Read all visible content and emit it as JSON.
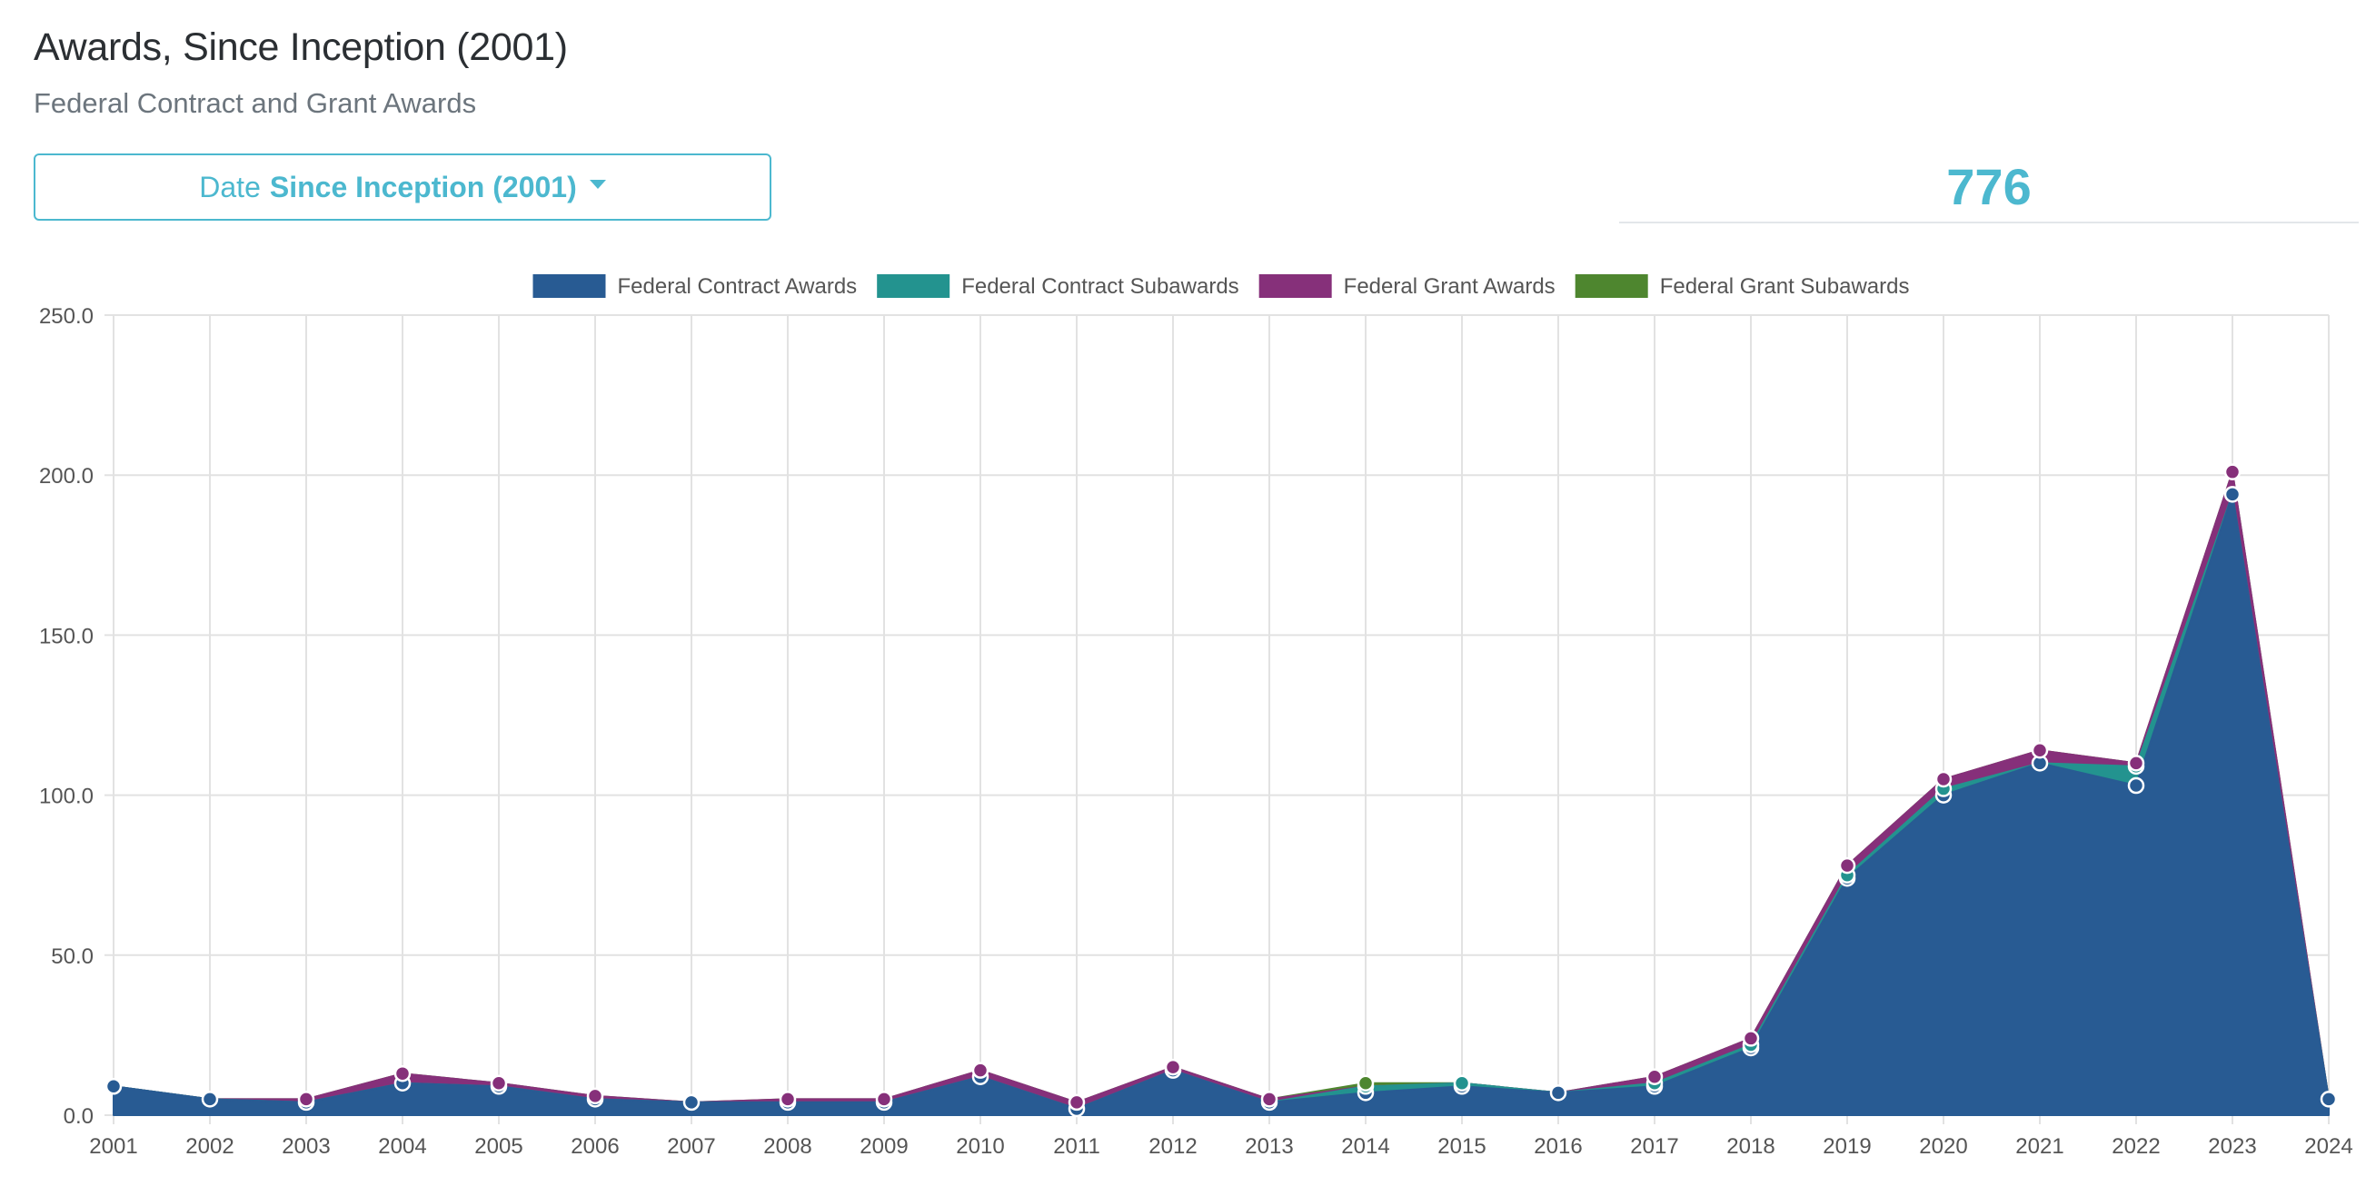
{
  "header": {
    "title": "Awards, Since Inception (2001)",
    "subtitle": "Federal Contract and Grant Awards"
  },
  "date_filter": {
    "label": "Date",
    "value": "Since Inception (2001)"
  },
  "total": "776",
  "colors": {
    "contract_awards": "#285b93",
    "contract_subawards": "#23938f",
    "grant_awards": "#86307a",
    "grant_subawards": "#4e862f",
    "grid": "#e2e2e2",
    "tick_text": "#555555"
  },
  "chart_data": {
    "type": "area",
    "stacked": true,
    "title": "",
    "xlabel": "",
    "ylabel": "",
    "ylim": [
      0,
      250
    ],
    "yticks": [
      "0.0",
      "50.0",
      "100.0",
      "150.0",
      "200.0",
      "250.0"
    ],
    "legend_position": "top",
    "grid": true,
    "categories": [
      "2001",
      "2002",
      "2003",
      "2004",
      "2005",
      "2006",
      "2007",
      "2008",
      "2009",
      "2010",
      "2011",
      "2012",
      "2013",
      "2014",
      "2015",
      "2016",
      "2017",
      "2018",
      "2019",
      "2020",
      "2021",
      "2022",
      "2023",
      "2024"
    ],
    "series": [
      {
        "name": "Federal Contract Awards",
        "color": "#285b93",
        "values": [
          9,
          5,
          4,
          10,
          9,
          5,
          4,
          4,
          4,
          12,
          2,
          14,
          4,
          7,
          9,
          7,
          9,
          21,
          74,
          100,
          110,
          103,
          194,
          5
        ]
      },
      {
        "name": "Federal Contract Subawards",
        "color": "#23938f",
        "values": [
          0,
          0,
          0,
          0,
          0,
          0,
          0,
          0,
          0,
          0,
          0,
          0,
          0,
          2,
          1,
          0,
          1,
          1,
          1,
          2,
          0,
          6,
          0,
          0
        ]
      },
      {
        "name": "Federal Grant Awards",
        "color": "#86307a",
        "values": [
          0,
          0,
          1,
          3,
          1,
          1,
          0,
          1,
          1,
          2,
          2,
          1,
          1,
          0,
          0,
          0,
          2,
          2,
          3,
          3,
          4,
          1,
          7,
          0
        ]
      },
      {
        "name": "Federal Grant Subawards",
        "color": "#4e862f",
        "values": [
          0,
          0,
          0,
          0,
          0,
          0,
          0,
          0,
          0,
          0,
          0,
          0,
          0,
          1,
          0,
          0,
          0,
          0,
          0,
          0,
          0,
          0,
          0,
          0
        ]
      }
    ]
  }
}
